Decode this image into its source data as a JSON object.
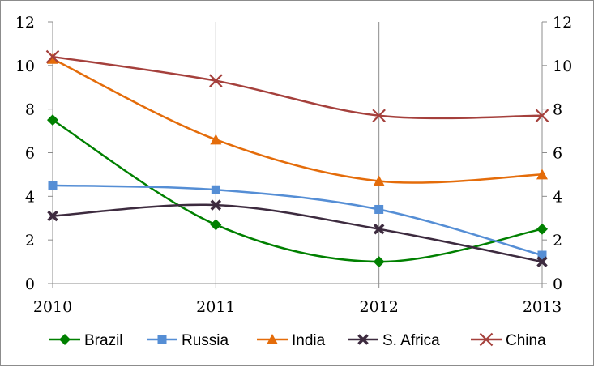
{
  "chart_data": {
    "type": "line",
    "categories": [
      "2010",
      "2011",
      "2012",
      "2013"
    ],
    "series": [
      {
        "name": "Brazil",
        "values": [
          7.5,
          2.7,
          1.0,
          2.5
        ],
        "color": "#008000",
        "marker": "diamond"
      },
      {
        "name": "Russia",
        "values": [
          4.5,
          4.3,
          3.4,
          1.3
        ],
        "color": "#558ED5",
        "marker": "square"
      },
      {
        "name": "India",
        "values": [
          10.3,
          6.6,
          4.7,
          5.0
        ],
        "color": "#E46C0A",
        "marker": "triangle"
      },
      {
        "name": "S. Africa",
        "values": [
          3.1,
          3.6,
          2.5,
          1.0
        ],
        "color": "#3D2B3F",
        "marker": "x-bold"
      },
      {
        "name": "China",
        "values": [
          10.4,
          9.3,
          7.7,
          7.7
        ],
        "color": "#A5403C",
        "marker": "x"
      }
    ],
    "yticks": [
      "0",
      "2",
      "4",
      "6",
      "8",
      "10",
      "12"
    ],
    "ylim": [
      0,
      12
    ],
    "secondary_axis": true,
    "grid": "vertical",
    "smooth": true,
    "legend_position": "bottom"
  }
}
